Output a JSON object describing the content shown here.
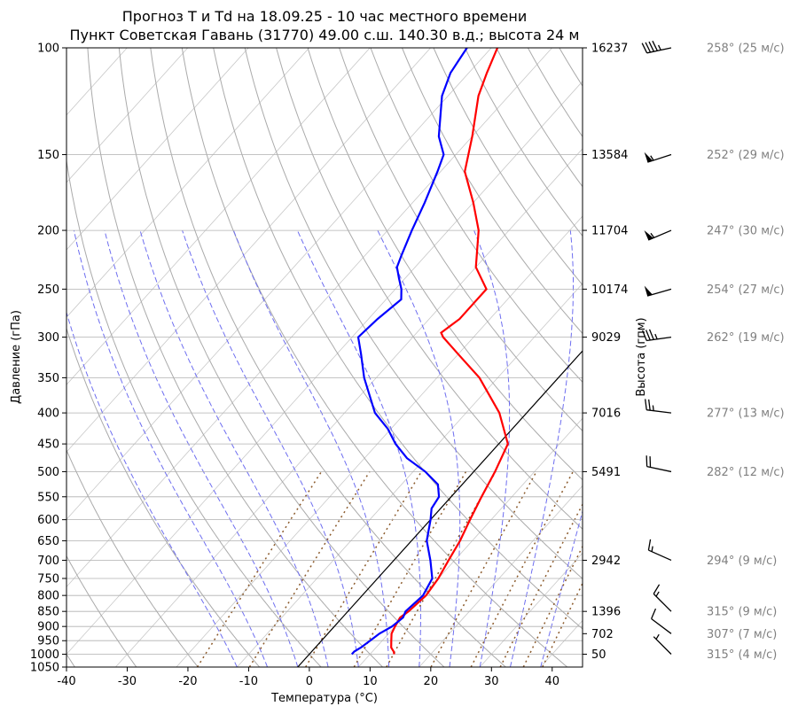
{
  "chart_data": {
    "type": "line",
    "title_line1": "Прогноз T и Td на 18.09.25 - 10 час местного времени",
    "title_line2": "Пункт Советская Гавань (31770) 49.00 с.ш. 140.30 в.д.; высота 24 м",
    "xlabel": "Температура (°C)",
    "ylabel": "Давление (гПа)",
    "ylabel_right": "Высота (гпм)",
    "xlim": [
      -40,
      45
    ],
    "ylim": [
      1050,
      100
    ],
    "y_scale": "log",
    "grid": true,
    "x_ticks": [
      -40,
      -30,
      -20,
      -10,
      0,
      10,
      20,
      30,
      40
    ],
    "y_ticks": [
      100,
      150,
      200,
      250,
      300,
      350,
      400,
      450,
      500,
      550,
      600,
      650,
      700,
      750,
      800,
      850,
      900,
      950,
      1000,
      1050
    ],
    "heights": [
      {
        "p": 100,
        "h": "16237"
      },
      {
        "p": 150,
        "h": "13584"
      },
      {
        "p": 200,
        "h": "11704"
      },
      {
        "p": 250,
        "h": "10174"
      },
      {
        "p": 300,
        "h": "9029"
      },
      {
        "p": 400,
        "h": "7016"
      },
      {
        "p": 500,
        "h": "5491"
      },
      {
        "p": 700,
        "h": "2942"
      },
      {
        "p": 850,
        "h": "1396"
      },
      {
        "p": 925,
        "h": "702"
      },
      {
        "p": 1000,
        "h": "50"
      }
    ],
    "series": [
      {
        "color": "#ff0000",
        "points": [
          [
            1000,
            14
          ],
          [
            990,
            13.5
          ],
          [
            975,
            12.5
          ],
          [
            950,
            11.5
          ],
          [
            925,
            10.5
          ],
          [
            900,
            10
          ],
          [
            870,
            9.5
          ],
          [
            850,
            10
          ],
          [
            800,
            10.5
          ],
          [
            750,
            10
          ],
          [
            700,
            9
          ],
          [
            650,
            8
          ],
          [
            600,
            6.5
          ],
          [
            550,
            5
          ],
          [
            500,
            3.5
          ],
          [
            450,
            1.5
          ],
          [
            400,
            -4.5
          ],
          [
            350,
            -13
          ],
          [
            320,
            -20
          ],
          [
            300,
            -25
          ],
          [
            295,
            -26
          ],
          [
            280,
            -25
          ],
          [
            265,
            -25
          ],
          [
            250,
            -25
          ],
          [
            230,
            -30
          ],
          [
            200,
            -35
          ],
          [
            180,
            -40
          ],
          [
            160,
            -46
          ],
          [
            140,
            -50
          ],
          [
            120,
            -55
          ],
          [
            110,
            -57
          ],
          [
            100,
            -59
          ]
        ]
      },
      {
        "color": "#0000ff",
        "points": [
          [
            1000,
            7
          ],
          [
            990,
            7
          ],
          [
            975,
            7.5
          ],
          [
            950,
            8
          ],
          [
            925,
            8.5
          ],
          [
            900,
            9.5
          ],
          [
            870,
            10
          ],
          [
            850,
            9.5
          ],
          [
            800,
            10
          ],
          [
            750,
            9
          ],
          [
            700,
            6
          ],
          [
            650,
            2.5
          ],
          [
            600,
            0
          ],
          [
            575,
            -1.5
          ],
          [
            550,
            -2
          ],
          [
            525,
            -4
          ],
          [
            500,
            -8
          ],
          [
            475,
            -13
          ],
          [
            450,
            -17
          ],
          [
            425,
            -20.5
          ],
          [
            400,
            -25
          ],
          [
            350,
            -32
          ],
          [
            320,
            -36
          ],
          [
            300,
            -39
          ],
          [
            280,
            -38.5
          ],
          [
            260,
            -37.5
          ],
          [
            250,
            -39
          ],
          [
            240,
            -41
          ],
          [
            230,
            -43
          ],
          [
            220,
            -44
          ],
          [
            200,
            -46
          ],
          [
            180,
            -48
          ],
          [
            160,
            -50.5
          ],
          [
            150,
            -52
          ],
          [
            140,
            -55.5
          ],
          [
            120,
            -61
          ],
          [
            110,
            -63
          ],
          [
            105,
            -63.5
          ],
          [
            100,
            -64
          ]
        ]
      }
    ],
    "winds": [
      {
        "p": 100,
        "label": "258° (25 м/с)"
      },
      {
        "p": 150,
        "label": "252° (29 м/с)"
      },
      {
        "p": 200,
        "label": "247° (30 м/с)"
      },
      {
        "p": 250,
        "label": "254° (27 м/с)"
      },
      {
        "p": 300,
        "label": "262° (19 м/с)"
      },
      {
        "p": 400,
        "label": "277° (13 м/с)"
      },
      {
        "p": 500,
        "label": "282° (12 м/с)"
      },
      {
        "p": 700,
        "label": "294° (9 м/с)"
      },
      {
        "p": 850,
        "label": "315° (9 м/с)"
      },
      {
        "p": 925,
        "label": "307° (7 м/с)"
      },
      {
        "p": 1000,
        "label": "315° (4 м/с)"
      }
    ],
    "colors": {
      "temperature": "#ff0000",
      "dewpoint": "#0000ff",
      "dry_adiabats": "#aaaaaa",
      "moist_adiabats": "#6e6ef0",
      "mixing_ratio": "#8b5a2b",
      "isotherms": "#c8c8c8",
      "parcel": "#000000",
      "wind_label": "#808080"
    }
  }
}
